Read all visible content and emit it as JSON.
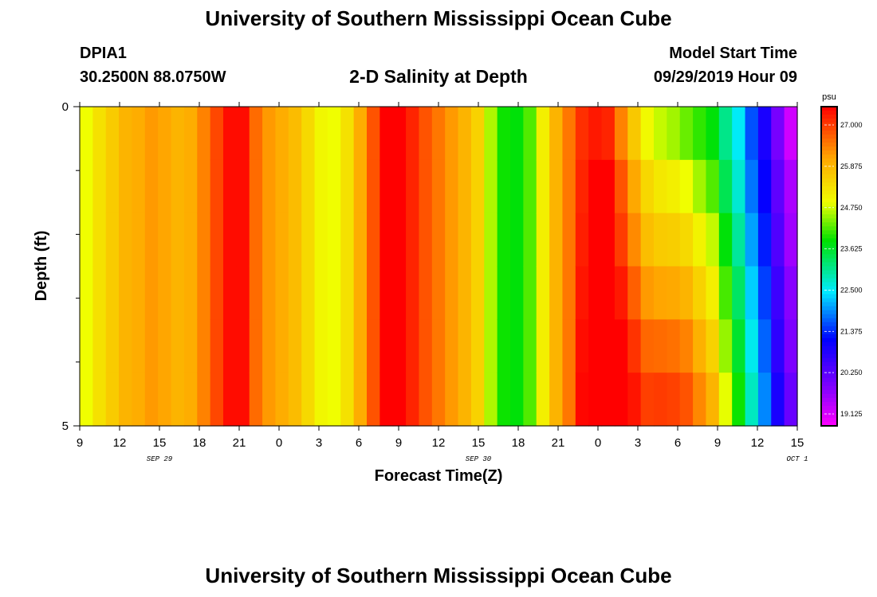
{
  "header": {
    "title_top": "University of Southern Mississippi Ocean Cube",
    "title_bottom": "University of Southern Mississippi Ocean Cube",
    "station_id": "DPIA1",
    "station_coords": "30.2500N 88.0750W",
    "chart_title": "2-D Salinity at Depth",
    "model_start_label": "Model Start Time",
    "model_start_time": "09/29/2019 Hour 09"
  },
  "chart_data": {
    "type": "heatmap",
    "title": "2-D Salinity at Depth",
    "xlabel": "Forecast Time(Z)",
    "ylabel": "Depth (ft)",
    "x_ticks": [
      "9",
      "12",
      "15",
      "18",
      "21",
      "0",
      "3",
      "6",
      "9",
      "12",
      "15",
      "18",
      "21",
      "0",
      "3",
      "6",
      "9",
      "12",
      "15"
    ],
    "date_labels": [
      {
        "text": "SEP 29",
        "hours": 6
      },
      {
        "text": "SEP 30",
        "hours": 30
      },
      {
        "text": "OCT 1",
        "hours": 54
      }
    ],
    "x_range_hours": [
      0,
      54
    ],
    "y_ticks": [
      "0",
      "5"
    ],
    "y_range": [
      0,
      5
    ],
    "colorbar": {
      "unit": "psu",
      "min": 18.8,
      "max": 27.5,
      "ticks": [
        "27.000",
        "25.875",
        "24.750",
        "23.625",
        "22.500",
        "21.375",
        "20.250",
        "19.125"
      ],
      "tick_values": [
        27.0,
        25.875,
        24.75,
        23.625,
        22.5,
        21.375,
        20.25,
        19.125
      ]
    },
    "grid": {
      "n_times": 55,
      "time_step_hours": 1,
      "depths_ft": [
        0,
        1,
        2,
        3,
        4,
        5
      ],
      "base_profile_psu": [
        24.9,
        25.3,
        25.6,
        25.9,
        26.0,
        26.2,
        26.1,
        25.9,
        26.0,
        26.4,
        26.9,
        27.4,
        27.4,
        26.6,
        26.2,
        26.0,
        25.8,
        25.4,
        25.0,
        24.9,
        25.3,
        26.0,
        26.8,
        27.5,
        27.5,
        27.2,
        26.8,
        26.5,
        26.2,
        25.9,
        25.5,
        24.6,
        23.9,
        23.8,
        24.2,
        25.1,
        25.9,
        26.5,
        27.2,
        27.5,
        27.5,
        26.8,
        26.0,
        25.3,
        25.0,
        24.7,
        24.3,
        23.9,
        23.5,
        22.7,
        22.0,
        21.2,
        20.6,
        19.8,
        19.2
      ],
      "depth_adjust_psu": [
        [
          0,
          0.0,
          0.0,
          0.0,
          0.0,
          0.0,
          0.0
        ],
        [
          37,
          0.0,
          0.0,
          0.0,
          0.0,
          0.0,
          0.0
        ],
        [
          41,
          -0.4,
          0.0,
          0.2,
          0.5,
          0.8,
          1.0
        ],
        [
          44,
          -0.3,
          0.2,
          0.6,
          1.1,
          1.6,
          2.0
        ],
        [
          46,
          0.0,
          0.6,
          1.1,
          1.6,
          2.1,
          2.5
        ],
        [
          48,
          0.3,
          0.7,
          1.2,
          1.6,
          2.0,
          2.4
        ],
        [
          50,
          0.5,
          0.7,
          1.0,
          1.3,
          1.6,
          1.9
        ],
        [
          52,
          0.3,
          0.5,
          0.7,
          0.9,
          1.1,
          1.3
        ],
        [
          54,
          0.0,
          0.3,
          0.4,
          0.6,
          0.7,
          0.9
        ]
      ]
    }
  }
}
